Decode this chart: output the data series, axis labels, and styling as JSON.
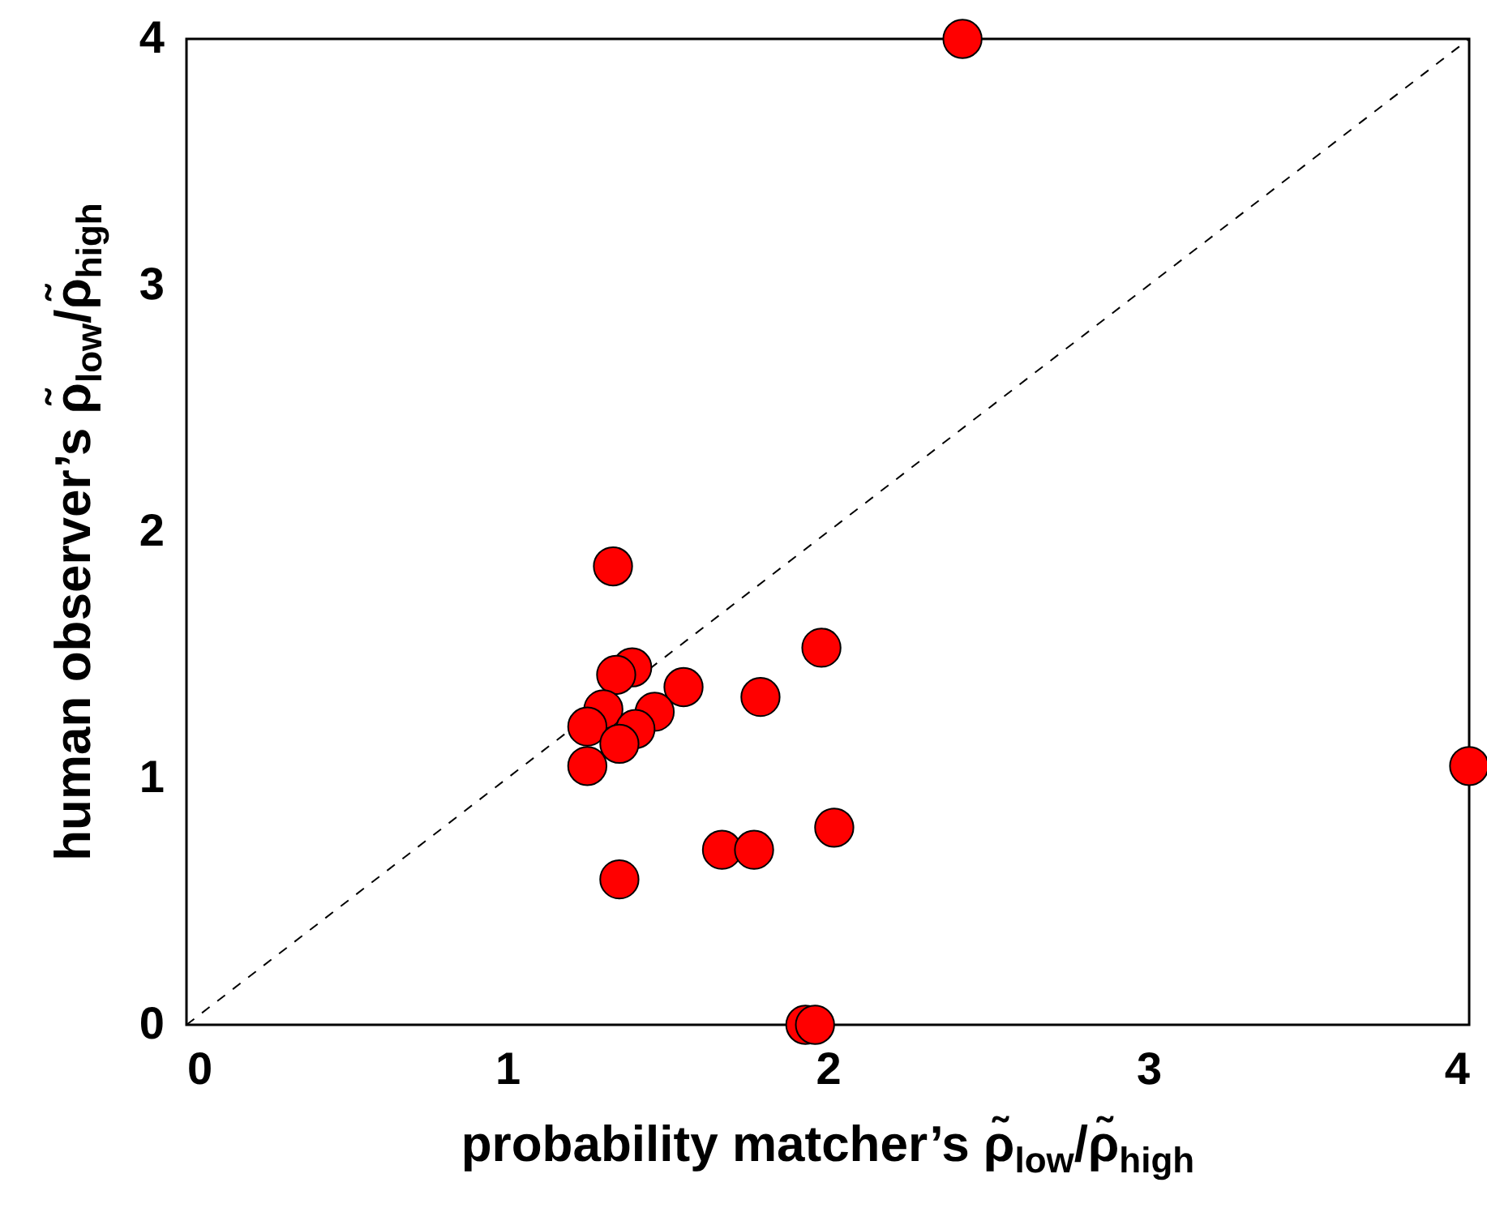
{
  "chart_data": {
    "type": "scatter",
    "xlabel": "probability matcher’s ρ̃$_{low}$/ρ̃$_{high}$",
    "ylabel": "human observer’s ρ̃$_{low}$/ρ̃$_{high}$",
    "xlim": [
      0,
      4
    ],
    "ylim": [
      0,
      4
    ],
    "xticks": [
      0,
      1,
      2,
      3,
      4
    ],
    "yticks": [
      0,
      1,
      2,
      3,
      4
    ],
    "grid": false,
    "series": [
      {
        "type": "line",
        "color": "#000000",
        "line_style": "dashed",
        "x": [
          0,
          4
        ],
        "values": [
          0,
          4
        ]
      },
      {
        "color": "#ff0000",
        "marker": "circle",
        "x": [
          1.33,
          1.39,
          1.34,
          1.55,
          1.3,
          1.46,
          1.25,
          1.4,
          1.35,
          1.25,
          1.79,
          1.98,
          1.67,
          1.77,
          2.02,
          1.35,
          1.93,
          1.96,
          2.42,
          4
        ],
        "values": [
          1.86,
          1.45,
          1.42,
          1.37,
          1.28,
          1.27,
          1.21,
          1.2,
          1.14,
          1.05,
          1.33,
          1.53,
          0.71,
          0.71,
          0.8,
          0.59,
          0,
          0,
          4,
          1.05
        ]
      }
    ]
  }
}
